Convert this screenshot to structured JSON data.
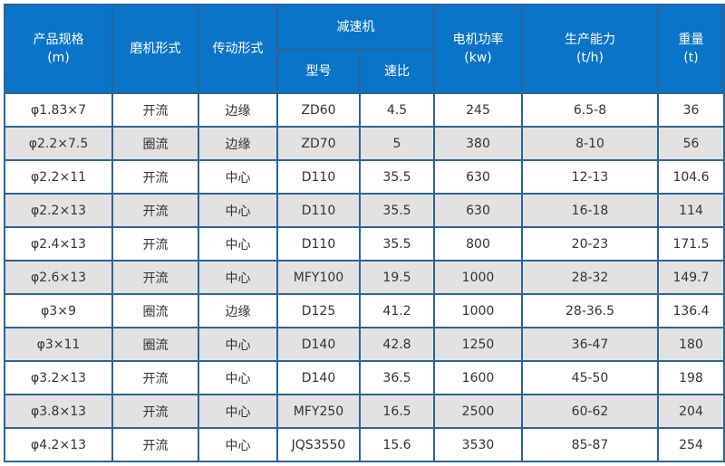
{
  "colors": {
    "header_bg": "#0a74c8",
    "border": "#2d6496",
    "alt_row": "#e2e2e2"
  },
  "headers": {
    "spec": "产品规格",
    "spec_unit": "(m)",
    "mill_type": "磨机形式",
    "drive": "传动形式",
    "reducer": "减速机",
    "model": "型号",
    "ratio": "速比",
    "power": "电机功率",
    "power_unit": "(kw)",
    "capacity": "生产能力",
    "capacity_unit": "(t/h)",
    "weight": "重量",
    "weight_unit": "(t)"
  },
  "rows": [
    [
      "φ1.83×7",
      "开流",
      "边缘",
      "ZD60",
      "4.5",
      "245",
      "6.5-8",
      "36"
    ],
    [
      "φ2.2×7.5",
      "圈流",
      "边缘",
      "ZD70",
      "5",
      "380",
      "8-10",
      "56"
    ],
    [
      "φ2.2×11",
      "开流",
      "中心",
      "D110",
      "35.5",
      "630",
      "12-13",
      "104.6"
    ],
    [
      "φ2.2×13",
      "开流",
      "中心",
      "D110",
      "35.5",
      "630",
      "16-18",
      "114"
    ],
    [
      "φ2.4×13",
      "开流",
      "中心",
      "D110",
      "35.5",
      "800",
      "20-23",
      "171.5"
    ],
    [
      "φ2.6×13",
      "开流",
      "中心",
      "MFY100",
      "19.5",
      "1000",
      "28-32",
      "149.7"
    ],
    [
      "φ3×9",
      "圈流",
      "边缘",
      "D125",
      "41.2",
      "1000",
      "28-36.5",
      "136.4"
    ],
    [
      "φ3×11",
      "圈流",
      "中心",
      "D140",
      "42.8",
      "1250",
      "36-47",
      "180"
    ],
    [
      "φ3.2×13",
      "开流",
      "中心",
      "D140",
      "36.5",
      "1600",
      "45-50",
      "198"
    ],
    [
      "φ3.8×13",
      "开流",
      "中心",
      "MFY250",
      "16.5",
      "2500",
      "60-62",
      "204"
    ],
    [
      "φ4.2×13",
      "开流",
      "中心",
      "JQS3550",
      "15.6",
      "3530",
      "85-87",
      "254"
    ]
  ]
}
